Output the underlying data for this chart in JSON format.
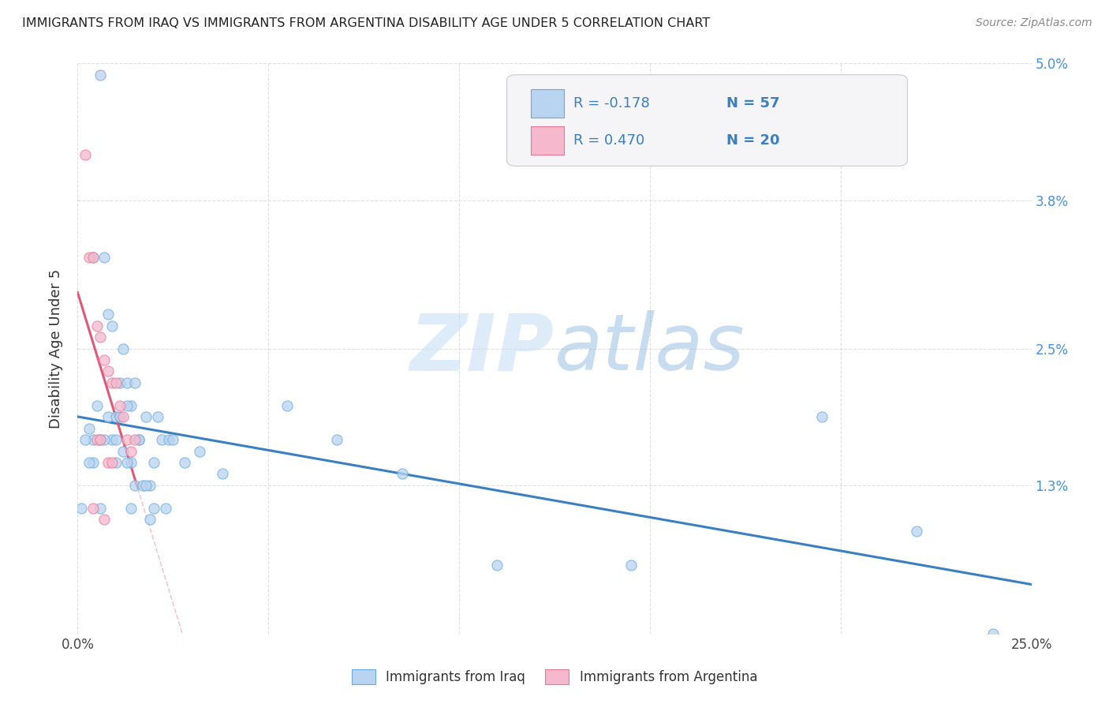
{
  "title": "IMMIGRANTS FROM IRAQ VS IMMIGRANTS FROM ARGENTINA DISABILITY AGE UNDER 5 CORRELATION CHART",
  "source": "Source: ZipAtlas.com",
  "ylabel": "Disability Age Under 5",
  "xlim": [
    0,
    0.25
  ],
  "ylim": [
    0,
    0.05
  ],
  "xtick_positions": [
    0.0,
    0.05,
    0.1,
    0.15,
    0.2,
    0.25
  ],
  "xticklabels": [
    "0.0%",
    "",
    "",
    "",
    "",
    "25.0%"
  ],
  "ytick_positions": [
    0.0,
    0.013,
    0.025,
    0.038,
    0.05
  ],
  "yticklabels": [
    "",
    "1.3%",
    "2.5%",
    "3.8%",
    "5.0%"
  ],
  "iraq_R": -0.178,
  "iraq_N": 57,
  "argentina_R": 0.47,
  "argentina_N": 20,
  "iraq_fill_color": "#b8d4f0",
  "argentina_fill_color": "#f5b8cc",
  "iraq_edge_color": "#6aaae0",
  "argentina_edge_color": "#e87898",
  "iraq_line_color": "#3a7fc1",
  "argentina_line_color": "#e05878",
  "iraq_scatter_x": [
    0.006,
    0.004,
    0.007,
    0.008,
    0.009,
    0.011,
    0.012,
    0.013,
    0.014,
    0.015,
    0.003,
    0.005,
    0.008,
    0.01,
    0.012,
    0.014,
    0.016,
    0.018,
    0.02,
    0.022,
    0.004,
    0.006,
    0.009,
    0.011,
    0.013,
    0.015,
    0.017,
    0.019,
    0.021,
    0.024,
    0.002,
    0.004,
    0.007,
    0.01,
    0.013,
    0.016,
    0.018,
    0.02,
    0.023,
    0.025,
    0.001,
    0.003,
    0.006,
    0.01,
    0.014,
    0.019,
    0.028,
    0.032,
    0.038,
    0.055,
    0.068,
    0.085,
    0.11,
    0.145,
    0.195,
    0.22,
    0.24
  ],
  "iraq_scatter_y": [
    0.049,
    0.033,
    0.033,
    0.028,
    0.027,
    0.022,
    0.025,
    0.022,
    0.02,
    0.022,
    0.018,
    0.02,
    0.019,
    0.019,
    0.016,
    0.015,
    0.017,
    0.019,
    0.015,
    0.017,
    0.017,
    0.017,
    0.017,
    0.019,
    0.02,
    0.013,
    0.013,
    0.013,
    0.019,
    0.017,
    0.017,
    0.015,
    0.017,
    0.015,
    0.015,
    0.017,
    0.013,
    0.011,
    0.011,
    0.017,
    0.011,
    0.015,
    0.011,
    0.017,
    0.011,
    0.01,
    0.015,
    0.016,
    0.014,
    0.02,
    0.017,
    0.014,
    0.006,
    0.006,
    0.019,
    0.009,
    0.0
  ],
  "argentina_scatter_x": [
    0.002,
    0.003,
    0.004,
    0.005,
    0.006,
    0.007,
    0.008,
    0.009,
    0.01,
    0.011,
    0.012,
    0.013,
    0.014,
    0.015,
    0.005,
    0.006,
    0.008,
    0.009,
    0.004,
    0.007
  ],
  "argentina_scatter_y": [
    0.042,
    0.033,
    0.033,
    0.027,
    0.026,
    0.024,
    0.023,
    0.022,
    0.022,
    0.02,
    0.019,
    0.017,
    0.016,
    0.017,
    0.017,
    0.017,
    0.015,
    0.015,
    0.011,
    0.01
  ],
  "watermark_zip": "ZIP",
  "watermark_atlas": "atlas",
  "background_color": "#ffffff",
  "grid_color": "#d8d8d8",
  "legend_box_color": "#f5f5f8"
}
